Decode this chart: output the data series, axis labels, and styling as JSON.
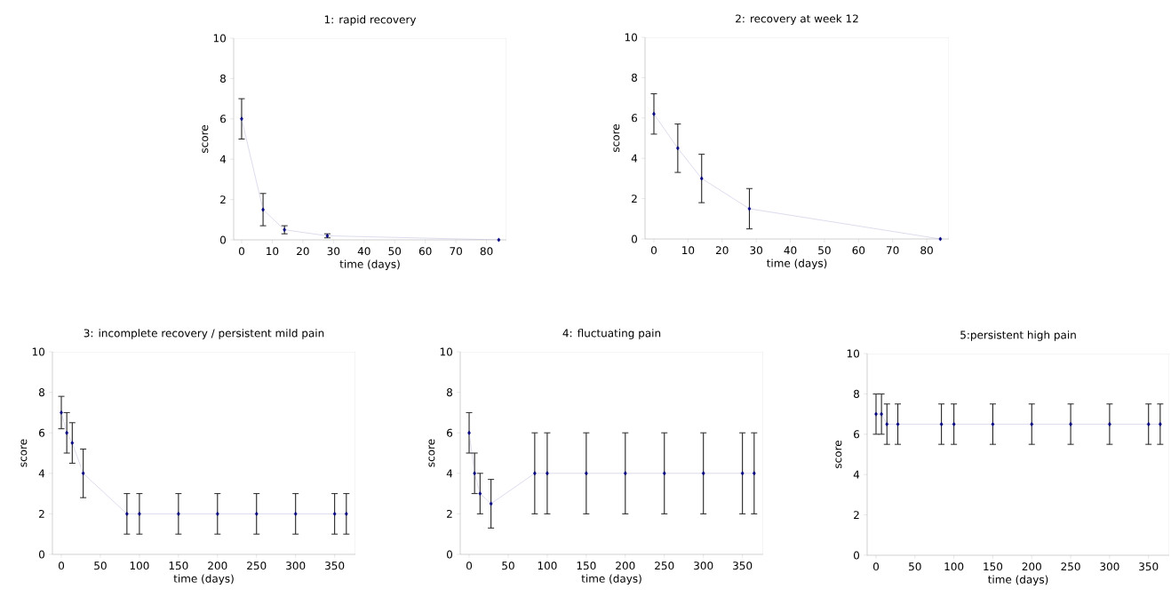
{
  "chart_data": [
    {
      "type": "line",
      "title": "1: rapid recovery",
      "xlabel": "time (days)",
      "ylabel": "score",
      "x": [
        0,
        7,
        14,
        28,
        84
      ],
      "values": [
        6,
        1.5,
        0.5,
        0.2,
        0
      ],
      "errors": [
        1,
        0.8,
        0.2,
        0.1,
        null
      ],
      "color": "#000080",
      "marker": "diamond",
      "xlim": [
        -2.6,
        86.5
      ],
      "xticks": [
        0,
        10,
        20,
        30,
        40,
        50,
        60,
        70,
        80
      ],
      "ylim": [
        0,
        10
      ],
      "yticks": [
        0,
        2,
        4,
        6,
        8,
        10
      ]
    },
    {
      "type": "line",
      "title": "2: recovery at week 12",
      "xlabel": "time (days)",
      "ylabel": "score",
      "x": [
        0,
        7,
        14,
        28,
        84
      ],
      "values": [
        6.2,
        4.5,
        3,
        1.5,
        0
      ],
      "errors": [
        1,
        1.2,
        1.2,
        1,
        null
      ],
      "color": "#000080",
      "marker": "diamond",
      "xlim": [
        -2.6,
        86.5
      ],
      "xticks": [
        0,
        10,
        20,
        30,
        40,
        50,
        60,
        70,
        80
      ],
      "ylim": [
        0,
        10
      ],
      "yticks": [
        0,
        2,
        4,
        6,
        8,
        10
      ]
    },
    {
      "type": "line",
      "title": "3: incomplete recovery / persistent mild pain",
      "xlabel": "time (days)",
      "ylabel": "score",
      "x": [
        0,
        7,
        14,
        28,
        84,
        100,
        150,
        200,
        250,
        300,
        350,
        365
      ],
      "values": [
        7,
        6,
        5.5,
        4,
        2,
        2,
        2,
        2,
        2,
        2,
        2,
        2
      ],
      "errors": [
        0.8,
        1,
        1,
        1.2,
        1,
        1,
        1,
        1,
        1,
        1,
        1,
        1
      ],
      "color": "#000080",
      "marker": "diamond",
      "xlim": [
        -11.4,
        376.6
      ],
      "xticks": [
        0,
        50,
        100,
        150,
        200,
        250,
        300,
        350
      ],
      "ylim": [
        0,
        10
      ],
      "yticks": [
        0,
        2,
        4,
        6,
        8,
        10
      ]
    },
    {
      "type": "line",
      "title": "4: fluctuating pain",
      "xlabel": "time (days)",
      "ylabel": "score",
      "x": [
        0,
        7,
        14,
        28,
        84,
        100,
        150,
        200,
        250,
        300,
        350,
        365
      ],
      "values": [
        6,
        4,
        3,
        2.5,
        4,
        4,
        4,
        4,
        4,
        4,
        4,
        4
      ],
      "errors": [
        1,
        1,
        1,
        1.2,
        2,
        2,
        2,
        2,
        2,
        2,
        2,
        2
      ],
      "color": "#000080",
      "marker": "diamond",
      "xlim": [
        -11.4,
        376.6
      ],
      "xticks": [
        0,
        50,
        100,
        150,
        200,
        250,
        300,
        350
      ],
      "ylim": [
        0,
        10
      ],
      "yticks": [
        0,
        2,
        4,
        6,
        8,
        10
      ]
    },
    {
      "type": "line",
      "title": "5:persistent high pain",
      "xlabel": "time (days)",
      "ylabel": "score",
      "x": [
        0,
        7,
        14,
        28,
        84,
        100,
        150,
        200,
        250,
        300,
        350,
        365
      ],
      "values": [
        7,
        7,
        6.5,
        6.5,
        6.5,
        6.5,
        6.5,
        6.5,
        6.5,
        6.5,
        6.5,
        6.5
      ],
      "errors": [
        1,
        1,
        1,
        1,
        1,
        1,
        1,
        1,
        1,
        1,
        1,
        1
      ],
      "color": "#000080",
      "marker": "diamond",
      "xlim": [
        -11.4,
        376.6
      ],
      "xticks": [
        0,
        50,
        100,
        150,
        200,
        250,
        300,
        350
      ],
      "ylim": [
        0,
        10
      ],
      "yticks": [
        0,
        2,
        4,
        6,
        8,
        10
      ]
    }
  ]
}
